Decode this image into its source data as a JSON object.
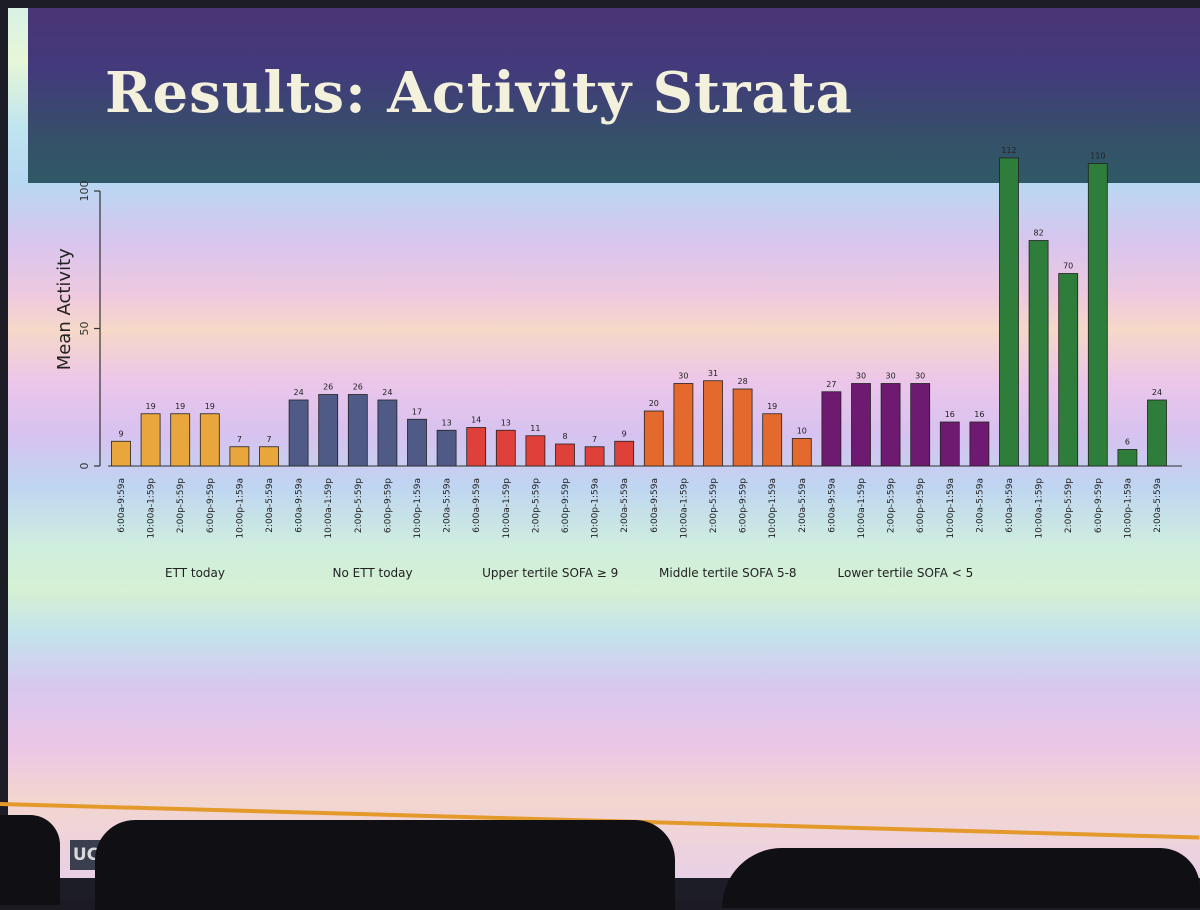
{
  "slide": {
    "title": "Results: Activity Strata",
    "logo_text": "UC"
  },
  "chart_data": {
    "type": "bar",
    "ylabel": "Mean Activity",
    "xlabel": "",
    "ylim": [
      0,
      115
    ],
    "yticks": [
      0,
      50,
      100
    ],
    "grid": false,
    "bar_time_labels": [
      "6:00a-9:59a",
      "10:00a-1:59p",
      "2:00p-5:59p",
      "6:00p-9:59p",
      "10:00p-1:59a",
      "2:00a-5:59a"
    ],
    "groups": [
      {
        "label": "ETT today",
        "color": "#e8a63c",
        "values": [
          9,
          19,
          19,
          19,
          7,
          7
        ]
      },
      {
        "label": "No ETT today",
        "color": "#4f5b86",
        "values": [
          24,
          26,
          26,
          24,
          17,
          13
        ]
      },
      {
        "label": "Upper tertile SOFA ≥ 9",
        "color": "#e0403a",
        "values": [
          14,
          13,
          11,
          8,
          7,
          9
        ]
      },
      {
        "label": "Middle tertile SOFA 5-8",
        "color": "#e36a2c",
        "values": [
          20,
          30,
          31,
          28,
          19,
          10
        ]
      },
      {
        "label": "Lower tertile SOFA < 5",
        "color": "#6e1a70",
        "values": [
          27,
          30,
          30,
          30,
          16,
          16
        ]
      },
      {
        "label": "",
        "color": "#2f7d3a",
        "values": [
          112,
          82,
          70,
          110,
          6,
          24
        ]
      }
    ]
  }
}
